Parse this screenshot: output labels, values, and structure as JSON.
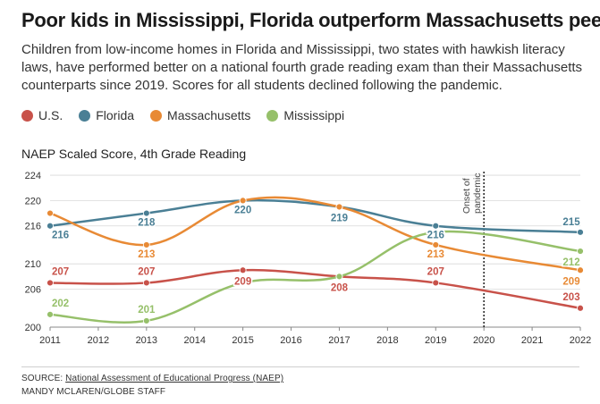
{
  "header": {
    "title": "Poor kids in Mississippi, Florida outperform Massachusetts peers",
    "subtitle": "Children from low-income homes in Florida and Mississippi, two states with hawkish literacy laws, have performed better on a national fourth grade reading exam than their Massachusetts counterparts since 2019. Scores for all students declined following the pandemic."
  },
  "chart_data": {
    "type": "line",
    "ylabel": "NAEP Scaled Score, 4th Grade Reading",
    "xlabel": "",
    "x_ticks": [
      "2011",
      "2012",
      "2013",
      "2014",
      "2015",
      "2016",
      "2017",
      "2018",
      "2019",
      "2020",
      "2021",
      "2022"
    ],
    "xlim": [
      2011,
      2022
    ],
    "y_ticks": [
      "200",
      "206",
      "210",
      "216",
      "220",
      "224"
    ],
    "ylim": [
      200,
      225
    ],
    "grid": "horizontal",
    "legend_placement": "top-left",
    "annotation": {
      "year": 2020,
      "lines": [
        "Onset of",
        "pandemic"
      ]
    },
    "series": [
      {
        "name": "U.S.",
        "color": "#c8524a",
        "points": [
          [
            2011,
            207
          ],
          [
            2013,
            207
          ],
          [
            2015,
            209
          ],
          [
            2017,
            208
          ],
          [
            2019,
            207
          ],
          [
            2022,
            203
          ]
        ],
        "labels": [
          [
            2011,
            "207"
          ],
          [
            2013,
            "207"
          ],
          [
            2015,
            "209"
          ],
          [
            2017,
            "208"
          ],
          [
            2019,
            "207"
          ],
          [
            2022,
            "203"
          ]
        ]
      },
      {
        "name": "Florida",
        "color": "#4a7f95",
        "points": [
          [
            2011,
            216
          ],
          [
            2013,
            218
          ],
          [
            2015,
            220
          ],
          [
            2017,
            219
          ],
          [
            2019,
            216
          ],
          [
            2022,
            215
          ]
        ],
        "labels": [
          [
            2011,
            "216"
          ],
          [
            2013,
            "218"
          ],
          [
            2015,
            "220"
          ],
          [
            2017,
            "219"
          ],
          [
            2019,
            "216"
          ],
          [
            2022,
            "215"
          ]
        ]
      },
      {
        "name": "Massachusetts",
        "color": "#e88a35",
        "points": [
          [
            2011,
            218
          ],
          [
            2013,
            213
          ],
          [
            2015,
            220
          ],
          [
            2017,
            219
          ],
          [
            2019,
            213
          ],
          [
            2022,
            209
          ]
        ],
        "labels": [
          [
            2019,
            "213"
          ],
          [
            2013,
            "213"
          ],
          [
            2022,
            "209"
          ]
        ]
      },
      {
        "name": "Mississippi",
        "color": "#96c06a",
        "points": [
          [
            2011,
            202
          ],
          [
            2013,
            201
          ],
          [
            2015,
            207
          ],
          [
            2017,
            208
          ],
          [
            2019,
            215
          ],
          [
            2022,
            212
          ]
        ],
        "labels": [
          [
            2011,
            "202"
          ],
          [
            2013,
            "201"
          ],
          [
            2022,
            "212"
          ]
        ]
      }
    ]
  },
  "footer": {
    "source_prefix": "SOURCE: ",
    "source_link": "National Assessment of Educational Progress (NAEP)",
    "credit": "MANDY MCLAREN/GLOBE STAFF"
  }
}
